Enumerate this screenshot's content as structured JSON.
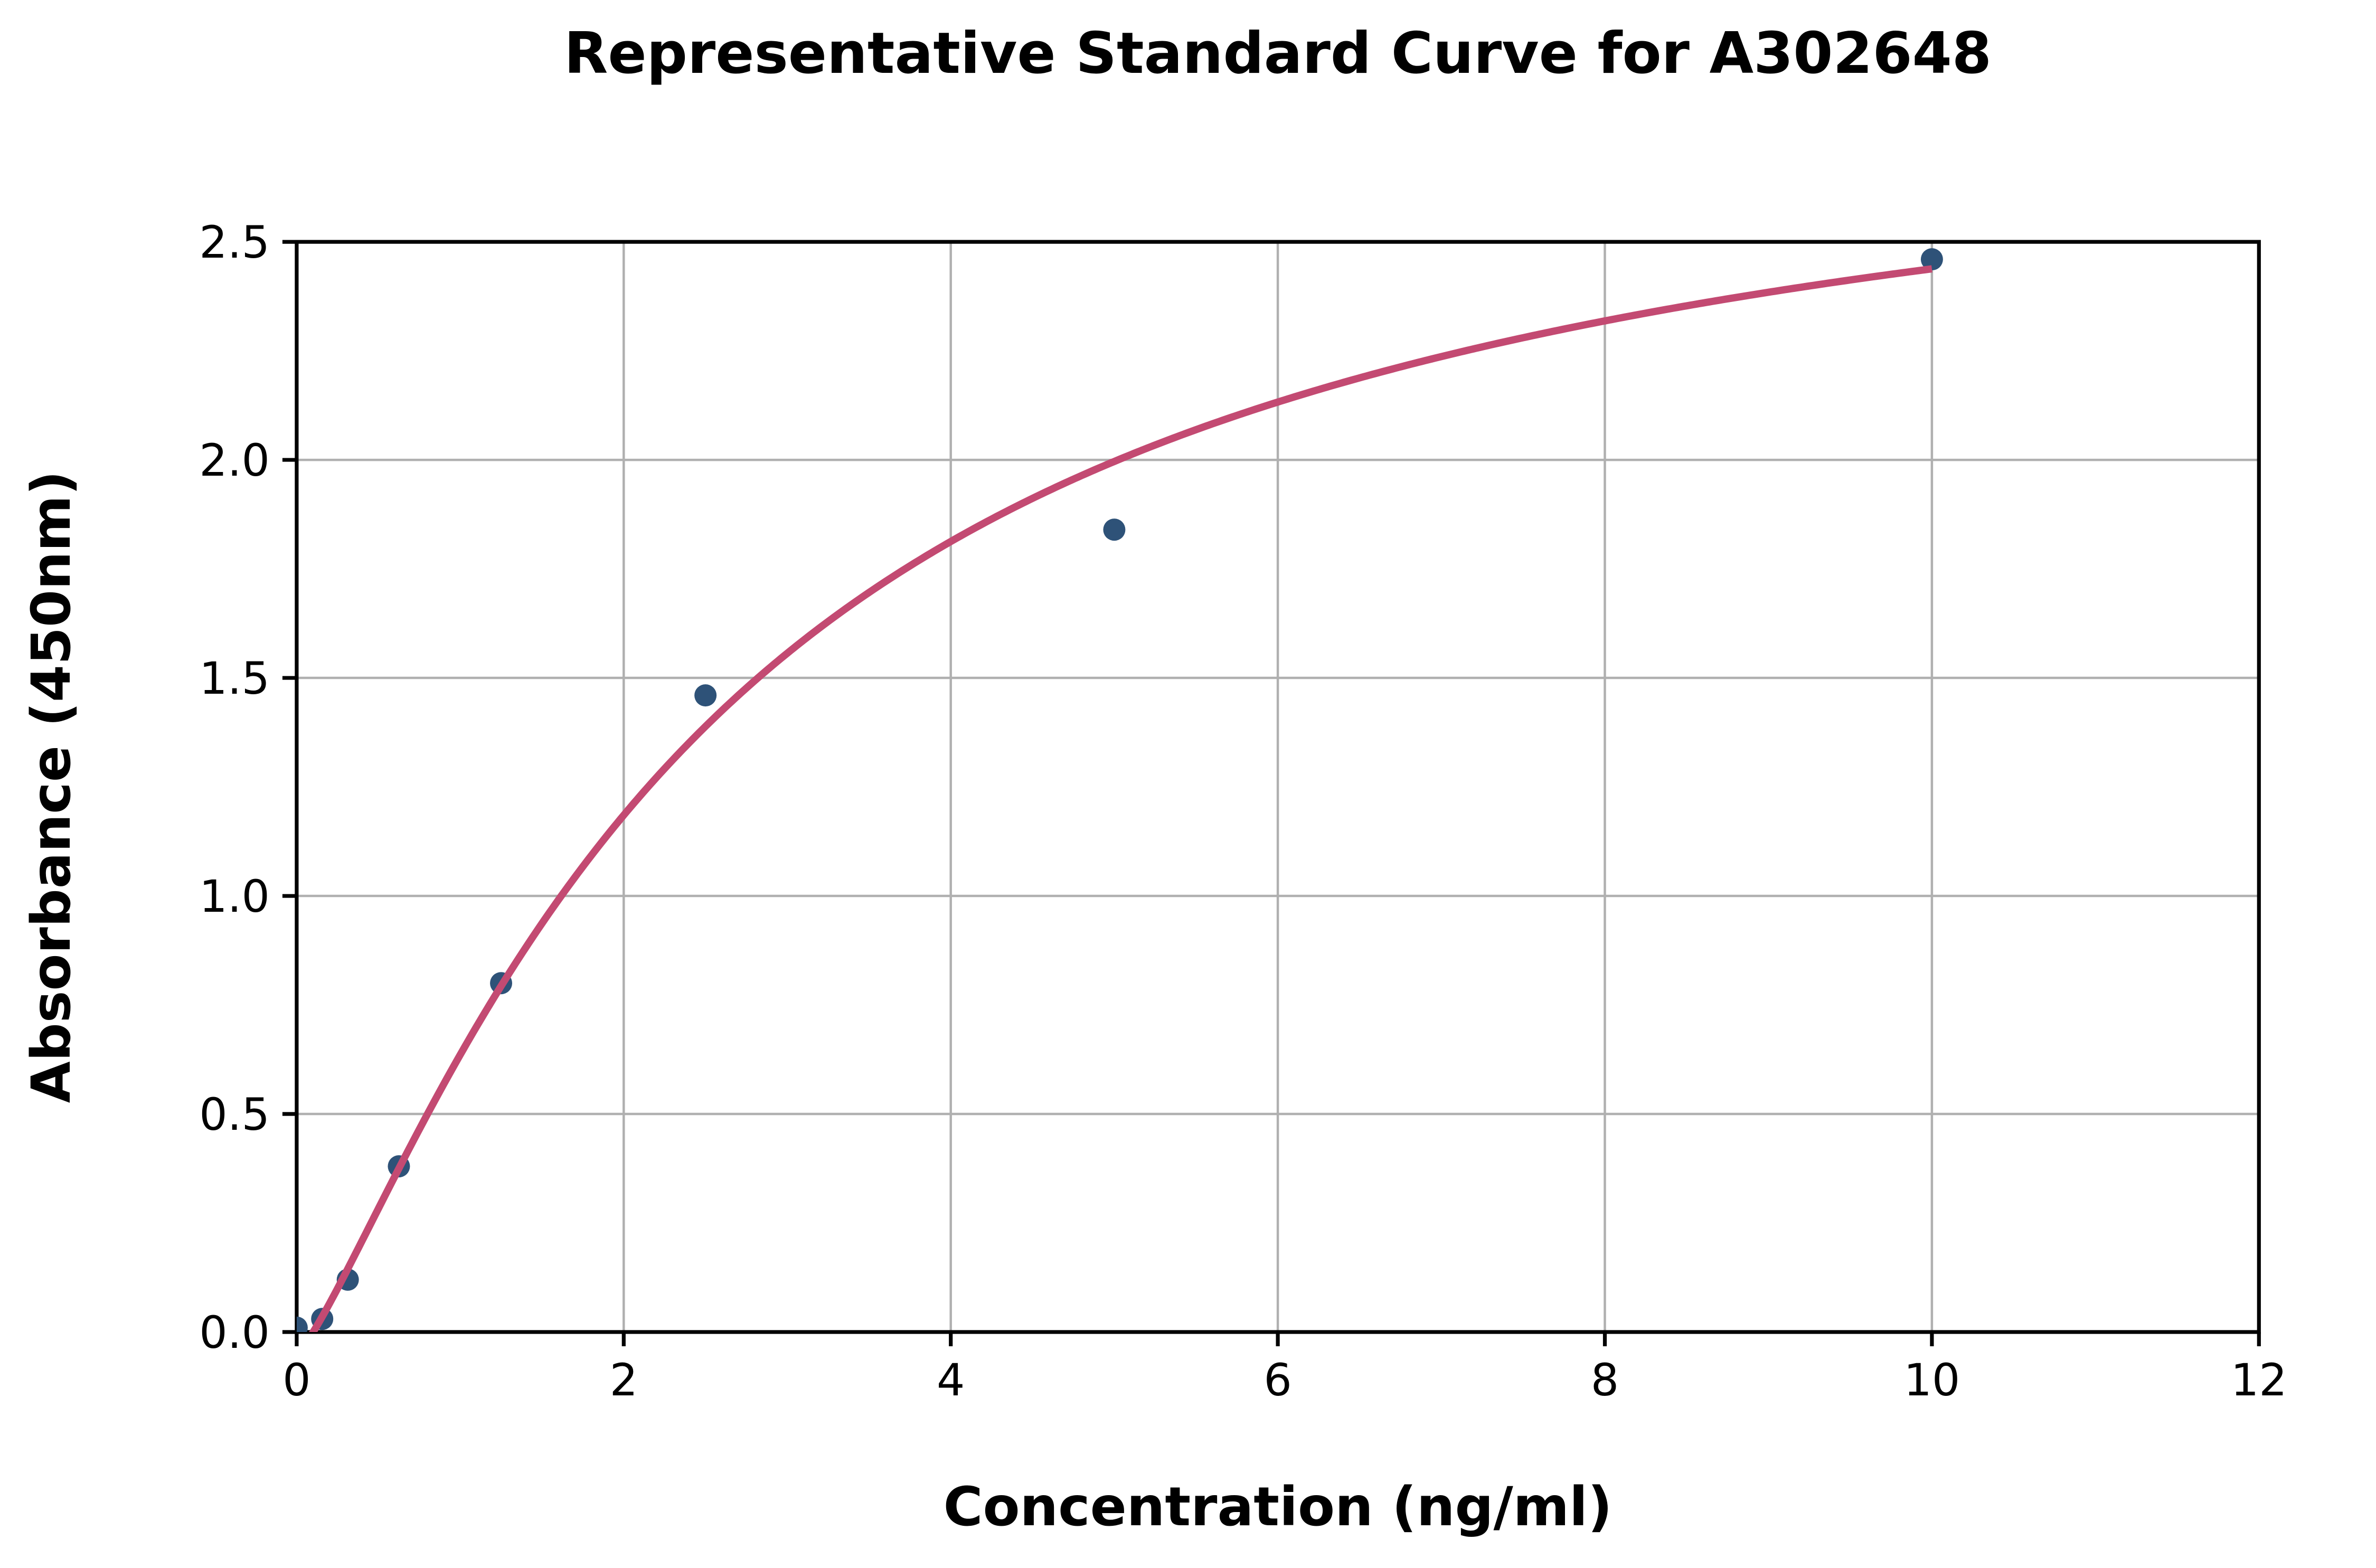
{
  "chart_data": {
    "type": "scatter",
    "title": "Representative Standard Curve for A302648",
    "xlabel": "Concentration (ng/ml)",
    "ylabel": "Absorbance (450nm)",
    "xlim": [
      0,
      12
    ],
    "ylim": [
      0,
      2.5
    ],
    "x_ticks": [
      0,
      2,
      4,
      6,
      8,
      10,
      12
    ],
    "x_tick_labels": [
      "0",
      "2",
      "4",
      "6",
      "8",
      "10",
      "12"
    ],
    "y_ticks": [
      0,
      0.5,
      1,
      1.5,
      2,
      2.5
    ],
    "y_tick_labels": [
      "0.0",
      "0.5",
      "1.0",
      "1.5",
      "2.0",
      "2.5"
    ],
    "grid": true,
    "legend": false,
    "series": [
      {
        "name": "standard-points",
        "type": "scatter",
        "color": "#2e5278",
        "marker_radius_px": 7,
        "points": [
          [
            0,
            0.01
          ],
          [
            0.156,
            0.03
          ],
          [
            0.3125,
            0.12
          ],
          [
            0.625,
            0.38
          ],
          [
            1.25,
            0.8
          ],
          [
            2.5,
            1.46
          ],
          [
            5,
            1.84
          ],
          [
            10,
            2.46
          ]
        ]
      },
      {
        "name": "fit-curve",
        "type": "line",
        "color": "#c34a72",
        "stroke_width_px": 4.6,
        "fit_model": "4PL",
        "fit_params": {
          "a": -0.05,
          "b": 1.25,
          "c": 2.6,
          "d": 2.9
        },
        "x_range": [
          0,
          10
        ]
      }
    ],
    "colors": {
      "grid": "#b0b0b0",
      "axis": "#000000",
      "background": "#ffffff"
    }
  }
}
